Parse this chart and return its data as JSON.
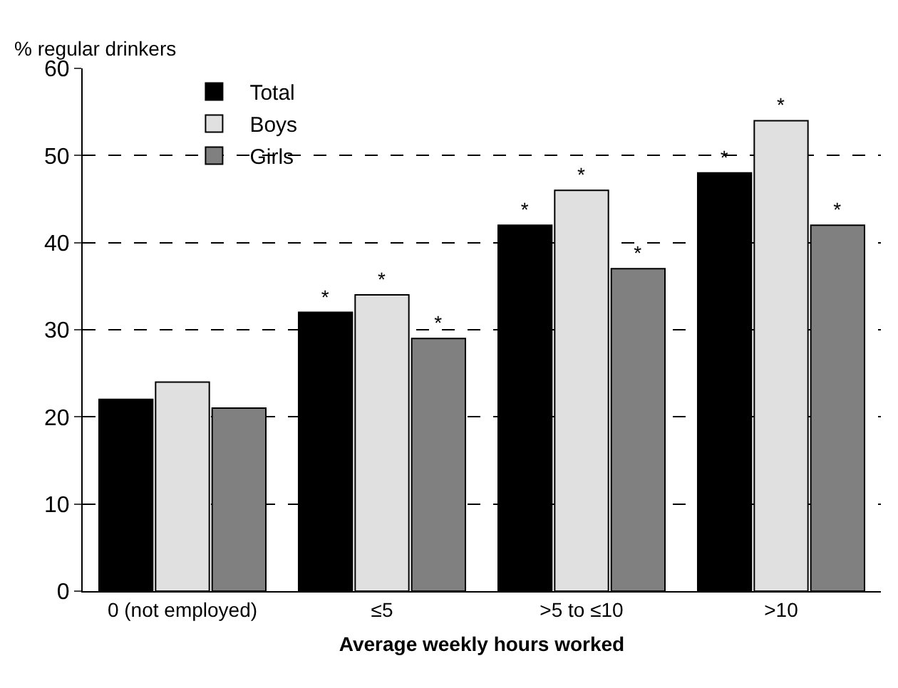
{
  "chart_data": {
    "type": "bar",
    "ylabel": "% regular drinkers",
    "xlabel": "Average weekly hours worked",
    "categories": [
      "0 (not employed)",
      "≤5",
      ">5 to ≤10",
      ">10"
    ],
    "series": [
      {
        "name": "Total",
        "color": "#000000",
        "values": [
          22,
          32,
          42,
          48
        ],
        "value_labels": [
          null,
          "*",
          "*",
          "*"
        ]
      },
      {
        "name": "Boys",
        "color": "#e0e0e0",
        "values": [
          24,
          34,
          46,
          54
        ],
        "value_labels": [
          null,
          "*",
          "*",
          "*"
        ]
      },
      {
        "name": "Girls",
        "color": "#808080",
        "values": [
          21,
          29,
          37,
          42
        ],
        "value_labels": [
          null,
          "*",
          "*",
          "*"
        ]
      }
    ],
    "ylim": [
      0,
      60
    ],
    "yticks": [
      0,
      10,
      20,
      30,
      40,
      50,
      60
    ],
    "grid": "y",
    "legend": "top left"
  }
}
